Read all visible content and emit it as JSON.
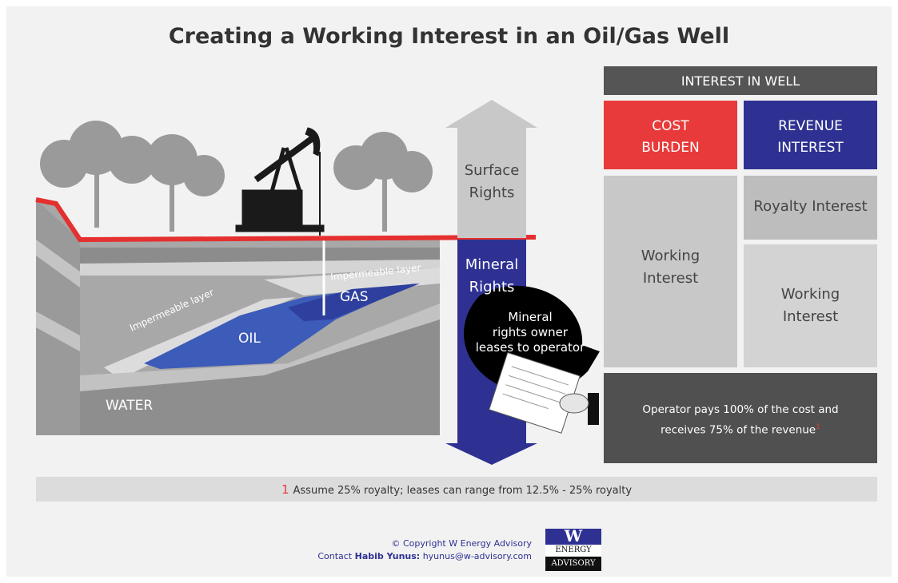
{
  "title": "Creating a Working Interest in an Oil/Gas Well",
  "illustration": {
    "layers": [
      "Impermeable layer",
      "Impermeable layer"
    ],
    "gas": "GAS",
    "oil": "OIL",
    "water": "WATER"
  },
  "arrow": {
    "surface": [
      "Surface",
      "Rights"
    ],
    "mineral": [
      "Mineral",
      "Rights"
    ]
  },
  "bubble": [
    "Mineral",
    "rights owner",
    "leases to operator"
  ],
  "table": {
    "header": "INTEREST IN WELL",
    "cost_burden": [
      "COST",
      "BURDEN"
    ],
    "revenue_interest": [
      "REVENUE",
      "INTEREST"
    ],
    "working_interest_cost": [
      "Working",
      "Interest"
    ],
    "royalty_interest": "Royalty Interest",
    "working_interest_revenue": [
      "Working",
      "Interest"
    ],
    "operator_note": {
      "lines": [
        "Operator pays 100% of the cost and",
        "receives 75% of the revenue"
      ],
      "note_mark": "1"
    }
  },
  "footnote": {
    "mark": "1",
    "text": "Assume 25% royalty; leases can range from 12.5% - 25% royalty"
  },
  "footer": {
    "copyright": "© Copyright W Energy Advisory",
    "contact_label": "Contact",
    "contact_name": "Habib Yunus:",
    "email": "hyunus@w-advisory.com"
  },
  "logo": {
    "letter": "W",
    "line1": "ENERGY",
    "line2": "ADVISORY"
  }
}
